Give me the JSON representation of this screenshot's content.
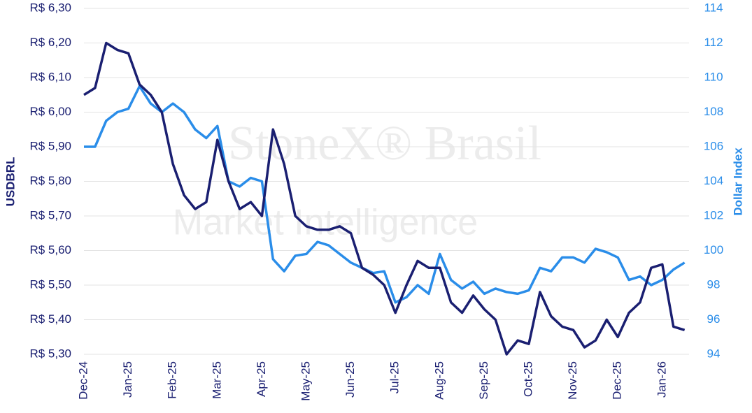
{
  "chart_data": {
    "type": "line",
    "watermark": [
      "StoneX®  Brasil",
      "Market Intelligence"
    ],
    "y_label": "USDBRL",
    "y2_label": "Dollar Index",
    "categories": [
      "Dec-24",
      null,
      null,
      null,
      "Jan-25",
      null,
      null,
      null,
      "Feb-25",
      null,
      null,
      null,
      "Mar-25",
      null,
      null,
      null,
      "Apr-25",
      null,
      null,
      null,
      "May-25",
      null,
      null,
      null,
      "Jun-25",
      null,
      null,
      null,
      "Jul-25",
      null,
      null,
      null,
      "Aug-25",
      null,
      null,
      null,
      "Sep-25",
      null,
      null,
      null,
      "Oct-25",
      null,
      null,
      null,
      "Nov-25",
      null,
      null,
      null,
      "Dec-25",
      null,
      null,
      null,
      "Jan-26",
      null,
      null
    ],
    "series": [
      {
        "name": "USDBRL",
        "color": "#1a1f71",
        "axis": "y",
        "values": [
          6.05,
          6.07,
          6.2,
          6.18,
          6.17,
          6.08,
          6.05,
          6.0,
          5.85,
          5.76,
          5.72,
          5.74,
          5.92,
          5.8,
          5.72,
          5.74,
          5.7,
          5.95,
          5.85,
          5.7,
          5.67,
          5.66,
          5.66,
          5.67,
          5.65,
          5.55,
          5.53,
          5.5,
          5.42,
          5.5,
          5.57,
          5.55,
          5.55,
          5.45,
          5.42,
          5.47,
          5.43,
          5.4,
          5.3,
          5.34,
          5.33,
          5.48,
          5.41,
          5.38,
          5.37,
          5.32,
          5.34,
          5.4,
          5.35,
          5.42,
          5.45,
          5.55,
          5.56,
          5.38,
          5.37
        ]
      },
      {
        "name": "Dollar Index",
        "color": "#2a8de9",
        "axis": "y2",
        "values": [
          106,
          106,
          107.5,
          108,
          108.2,
          109.5,
          108.5,
          108,
          108.5,
          108,
          107,
          106.5,
          107.2,
          104,
          103.7,
          104.2,
          104,
          99.5,
          98.8,
          99.7,
          99.8,
          100.5,
          100.3,
          99.8,
          99.3,
          99,
          98.7,
          98.8,
          97,
          97.3,
          98,
          97.5,
          99.8,
          98.3,
          97.8,
          98.2,
          97.5,
          97.8,
          97.6,
          97.5,
          97.7,
          99,
          98.8,
          99.6,
          99.6,
          99.3,
          100.1,
          99.9,
          99.6,
          98.3,
          98.5,
          98,
          98.3,
          98.9,
          99.3
        ]
      }
    ],
    "ylim": [
      5.3,
      6.3
    ],
    "yticks": [
      {
        "value": 5.3,
        "label": "R$ 5,30"
      },
      {
        "value": 5.4,
        "label": "R$ 5,40"
      },
      {
        "value": 5.5,
        "label": "R$ 5,50"
      },
      {
        "value": 5.6,
        "label": "R$ 5,60"
      },
      {
        "value": 5.7,
        "label": "R$ 5,70"
      },
      {
        "value": 5.8,
        "label": "R$ 5,80"
      },
      {
        "value": 5.9,
        "label": "R$ 5,90"
      },
      {
        "value": 6.0,
        "label": "R$ 6,00"
      },
      {
        "value": 6.1,
        "label": "R$ 6,10"
      },
      {
        "value": 6.2,
        "label": "R$ 6,20"
      },
      {
        "value": 6.3,
        "label": "R$ 6,30"
      }
    ],
    "y2lim": [
      94,
      114
    ],
    "y2ticks": [
      94,
      96,
      98,
      100,
      102,
      104,
      106,
      108,
      110,
      112,
      114
    ],
    "grid": true
  }
}
